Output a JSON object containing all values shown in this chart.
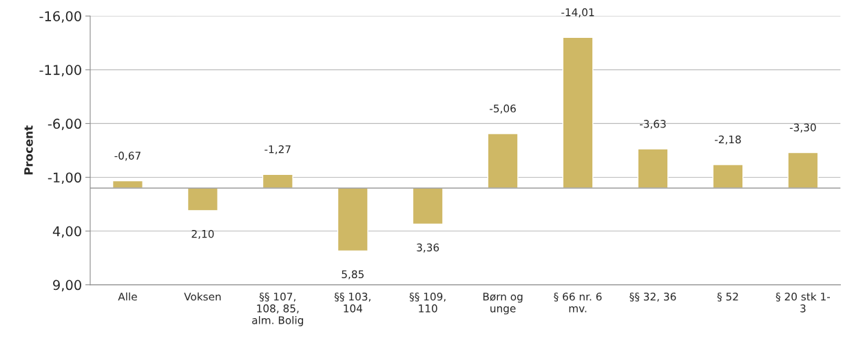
{
  "chart_data": {
    "type": "bar",
    "ylabel": "Procent",
    "categories": [
      "Alle",
      "Voksen",
      "§§ 107,\n108, 85,\nalm. Bolig",
      "§§ 103,\n104",
      "§§ 109,\n110",
      "Børn og\nunge",
      "§ 66 nr. 6\nmv.",
      "§§ 32, 36",
      "§ 52",
      "§ 20 stk 1-\n3"
    ],
    "values": [
      -0.67,
      2.1,
      -1.27,
      5.85,
      3.36,
      -5.06,
      -14.01,
      -3.63,
      -2.18,
      -3.3
    ],
    "value_labels": [
      "-0,67",
      "2,10",
      "-1,27",
      "5,85",
      "3,36",
      "-5,06",
      "-14,01",
      "-3,63",
      "-2,18",
      "-3,30"
    ],
    "color": "#cfb865",
    "ylim": [
      9,
      -16
    ],
    "yticks": [
      {
        "value": -16,
        "label": "-16,00"
      },
      {
        "value": -11,
        "label": "-11,00"
      },
      {
        "value": -6,
        "label": "-6,00"
      },
      {
        "value": -1,
        "label": "-1,00"
      },
      {
        "value": 4,
        "label": "4,00"
      },
      {
        "value": 9,
        "label": "9,00"
      }
    ],
    "grid": "y",
    "legend": false
  }
}
